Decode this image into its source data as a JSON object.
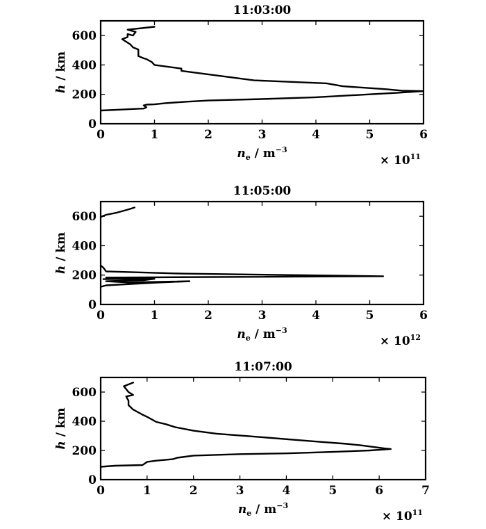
{
  "chart_data": [
    {
      "type": "line",
      "title": "11:03:00",
      "xlabel": {
        "symbol": "n",
        "subscript": "e",
        "unit": " / m",
        "unit_exp": "−3"
      },
      "ylabel": {
        "symbol": "h",
        "unit": " / km"
      },
      "multiplier": {
        "base": "× 10",
        "exp": "11"
      },
      "xlim": [
        0,
        6
      ],
      "ylim": [
        0,
        700
      ],
      "xticks": [
        "0",
        "1",
        "2",
        "3",
        "4",
        "5",
        "6"
      ],
      "yticks": [
        "0",
        "200",
        "400",
        "600"
      ],
      "grid": false,
      "series": [
        {
          "x": [
            0.0,
            0.3,
            0.7,
            0.8,
            0.85,
            0.8,
            0.85,
            1.0,
            1.2,
            1.6,
            2.0,
            3.0,
            4.0,
            5.0,
            5.5,
            5.9,
            6.0,
            5.6,
            5.3,
            4.5,
            4.2,
            2.85,
            1.5,
            1.5,
            1.0,
            0.95,
            0.85,
            0.8,
            0.7,
            0.7,
            0.7,
            0.6,
            0.55,
            0.4,
            0.5,
            0.5,
            0.6,
            0.65,
            0.5,
            1.0
          ],
          "y": [
            90,
            95,
            102,
            103,
            112,
            125,
            130,
            132,
            140,
            150,
            158,
            168,
            180,
            200,
            210,
            220,
            222,
            225,
            235,
            255,
            275,
            295,
            360,
            375,
            400,
            420,
            440,
            445,
            460,
            480,
            505,
            520,
            540,
            575,
            590,
            610,
            600,
            625,
            640,
            660
          ]
        }
      ]
    },
    {
      "type": "line",
      "title": "11:05:00",
      "xlabel": {
        "symbol": "n",
        "subscript": "e",
        "unit": " / m",
        "unit_exp": "−3"
      },
      "ylabel": {
        "symbol": "h",
        "unit": " / km"
      },
      "multiplier": {
        "base": "× 10",
        "exp": "12"
      },
      "xlim": [
        0,
        6
      ],
      "ylim": [
        0,
        700
      ],
      "xticks": [
        "0",
        "1",
        "2",
        "3",
        "4",
        "5",
        "6"
      ],
      "yticks": [
        "0",
        "200",
        "400",
        "600"
      ],
      "grid": false,
      "series": [
        {
          "x": [
            0.0,
            0.1,
            1.0,
            1.65,
            0.5,
            0.1,
            0.8,
            1.0,
            0.05,
            0.8,
            0.1,
            1.0,
            5.25,
            1.5,
            0.1,
            0.05,
            0.0,
            0.0
          ],
          "y": [
            120,
            130,
            148,
            158,
            150,
            158,
            165,
            175,
            172,
            182,
            183,
            185,
            192,
            210,
            225,
            250,
            265,
            270
          ]
        },
        {
          "x": [
            0.0,
            0.1,
            0.3,
            0.5,
            0.63
          ],
          "y": [
            595,
            610,
            625,
            645,
            660
          ]
        }
      ]
    },
    {
      "type": "line",
      "title": "11:07:00",
      "xlabel": {
        "symbol": "n",
        "subscript": "e",
        "unit": " / m",
        "unit_exp": "−3"
      },
      "ylabel": {
        "symbol": "h",
        "unit": " / km"
      },
      "multiplier": {
        "base": "× 10",
        "exp": "11"
      },
      "xlim": [
        0,
        7
      ],
      "ylim": [
        0,
        700
      ],
      "xticks": [
        "0",
        "1",
        "2",
        "3",
        "4",
        "5",
        "6",
        "7"
      ],
      "yticks": [
        "0",
        "200",
        "400",
        "600"
      ],
      "grid": false,
      "series": [
        {
          "x": [
            0.0,
            0.3,
            0.9,
            0.95,
            1.0,
            1.2,
            1.55,
            1.65,
            2.0,
            3.0,
            4.0,
            5.0,
            5.8,
            6.25,
            6.1,
            5.6,
            5.3,
            4.5,
            3.5,
            2.5,
            2.0,
            1.6,
            1.4,
            1.2,
            1.0,
            0.9,
            0.7,
            0.6,
            0.6,
            0.55,
            0.7,
            0.6,
            0.5,
            0.7
          ],
          "y": [
            88,
            95,
            100,
            110,
            122,
            130,
            140,
            150,
            165,
            175,
            180,
            190,
            200,
            210,
            215,
            235,
            245,
            265,
            290,
            315,
            335,
            360,
            380,
            395,
            430,
            445,
            480,
            510,
            540,
            570,
            580,
            600,
            640,
            665
          ]
        }
      ]
    }
  ]
}
